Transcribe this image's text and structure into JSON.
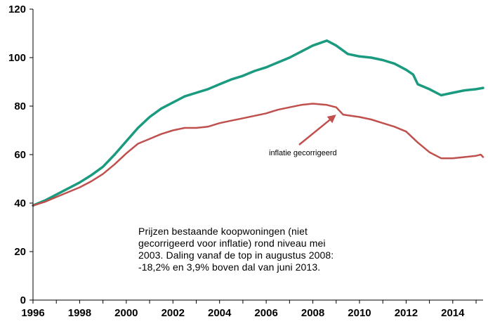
{
  "chart_data": {
    "type": "line",
    "title": "",
    "xlabel": "",
    "ylabel": "",
    "xlim": [
      1996,
      2015.3
    ],
    "ylim": [
      0,
      120
    ],
    "x_ticks": [
      "1996",
      "1998",
      "2000",
      "2002",
      "2004",
      "2006",
      "2008",
      "2010",
      "2012",
      "2014"
    ],
    "y_ticks": [
      "0",
      "20",
      "40",
      "60",
      "80",
      "100",
      "120"
    ],
    "grid": false,
    "legend": "none",
    "colors": {
      "nominal": "#1a9a7f",
      "real": "#c0504d",
      "axis": "#000000"
    },
    "series": [
      {
        "key": "nominal",
        "values": [
          [
            1996.0,
            39.0
          ],
          [
            1996.5,
            41.0
          ],
          [
            1997.0,
            43.5
          ],
          [
            1997.5,
            46.0
          ],
          [
            1998.0,
            48.5
          ],
          [
            1998.5,
            51.5
          ],
          [
            1999.0,
            55.0
          ],
          [
            1999.5,
            60.0
          ],
          [
            2000.0,
            65.5
          ],
          [
            2000.5,
            71.0
          ],
          [
            2001.0,
            75.5
          ],
          [
            2001.5,
            79.0
          ],
          [
            2002.0,
            81.5
          ],
          [
            2002.5,
            84.0
          ],
          [
            2003.0,
            85.5
          ],
          [
            2003.5,
            87.0
          ],
          [
            2004.0,
            89.0
          ],
          [
            2004.5,
            91.0
          ],
          [
            2005.0,
            92.5
          ],
          [
            2005.5,
            94.5
          ],
          [
            2006.0,
            96.0
          ],
          [
            2006.5,
            98.0
          ],
          [
            2007.0,
            100.0
          ],
          [
            2007.5,
            102.5
          ],
          [
            2008.0,
            105.0
          ],
          [
            2008.6,
            107.0
          ],
          [
            2009.0,
            105.0
          ],
          [
            2009.5,
            101.5
          ],
          [
            2010.0,
            100.5
          ],
          [
            2010.5,
            100.0
          ],
          [
            2011.0,
            99.0
          ],
          [
            2011.5,
            97.5
          ],
          [
            2012.0,
            95.0
          ],
          [
            2012.3,
            93.0
          ],
          [
            2012.5,
            89.0
          ],
          [
            2013.0,
            87.0
          ],
          [
            2013.5,
            84.5
          ],
          [
            2014.0,
            85.5
          ],
          [
            2014.5,
            86.5
          ],
          [
            2015.0,
            87.0
          ],
          [
            2015.3,
            87.5
          ]
        ]
      },
      {
        "key": "real",
        "name": "inflatie gecorrigeerd",
        "values": [
          [
            1996.0,
            39.0
          ],
          [
            1996.5,
            40.5
          ],
          [
            1997.0,
            42.5
          ],
          [
            1997.5,
            44.5
          ],
          [
            1998.0,
            46.5
          ],
          [
            1998.5,
            49.0
          ],
          [
            1999.0,
            52.0
          ],
          [
            1999.5,
            56.0
          ],
          [
            2000.0,
            60.5
          ],
          [
            2000.5,
            64.5
          ],
          [
            2001.0,
            66.5
          ],
          [
            2001.5,
            68.5
          ],
          [
            2002.0,
            70.0
          ],
          [
            2002.5,
            71.0
          ],
          [
            2003.0,
            71.0
          ],
          [
            2003.5,
            71.5
          ],
          [
            2004.0,
            73.0
          ],
          [
            2004.5,
            74.0
          ],
          [
            2005.0,
            75.0
          ],
          [
            2005.5,
            76.0
          ],
          [
            2006.0,
            77.0
          ],
          [
            2006.5,
            78.5
          ],
          [
            2007.0,
            79.5
          ],
          [
            2007.5,
            80.5
          ],
          [
            2008.0,
            81.0
          ],
          [
            2008.6,
            80.5
          ],
          [
            2009.0,
            79.5
          ],
          [
            2009.3,
            76.5
          ],
          [
            2010.0,
            75.5
          ],
          [
            2010.5,
            74.5
          ],
          [
            2011.0,
            73.0
          ],
          [
            2011.5,
            71.5
          ],
          [
            2012.0,
            69.5
          ],
          [
            2012.5,
            65.0
          ],
          [
            2013.0,
            61.0
          ],
          [
            2013.5,
            58.5
          ],
          [
            2014.0,
            58.5
          ],
          [
            2014.5,
            59.0
          ],
          [
            2015.0,
            59.5
          ],
          [
            2015.2,
            60.0
          ],
          [
            2015.3,
            59.0
          ]
        ]
      }
    ],
    "annotations": [
      {
        "text": "inflatie gecorrigeerd",
        "arrow_to": [
          2009.0,
          76.5
        ]
      }
    ]
  },
  "note": {
    "lines": [
      "Prijzen bestaande koopwoningen (niet",
      "gecorrigeerd voor inflatie) rond niveau mei",
      "2003. Daling vanaf de top in augustus 2008:",
      "-18,2% en 3,9% boven dal van juni 2013."
    ]
  }
}
